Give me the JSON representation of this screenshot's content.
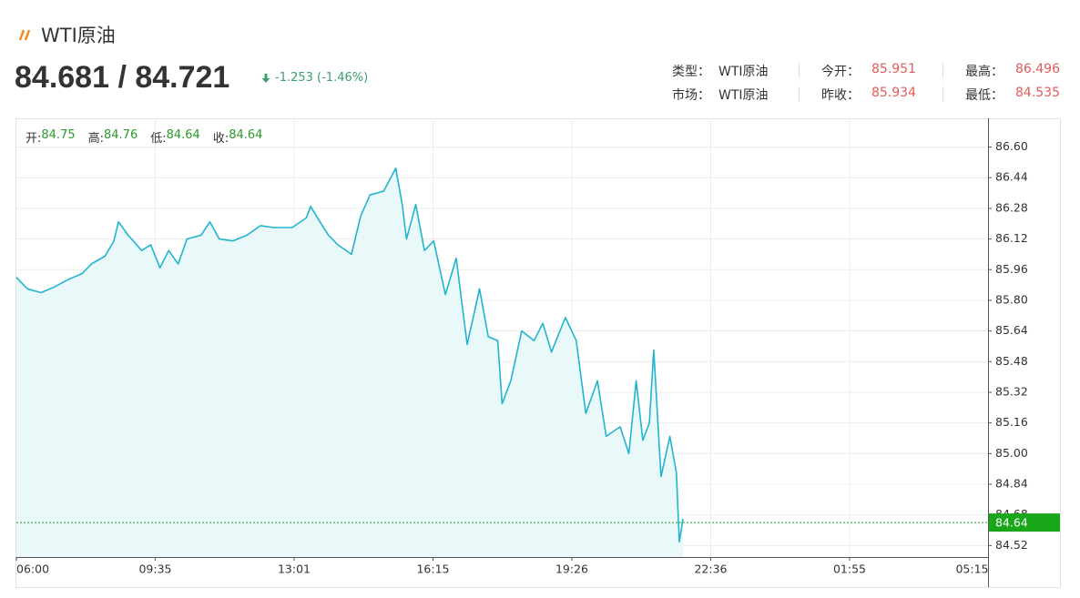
{
  "header": {
    "title": "WTI原油",
    "price": "84.681 / 84.721",
    "change": "-1.253 (-1.46%)",
    "info": [
      [
        {
          "label": "类型：",
          "value": "WTI原油"
        },
        {
          "label": "今开：",
          "value": "85.951"
        },
        {
          "label": "最高：",
          "value": "86.496"
        }
      ],
      [
        {
          "label": "市场：",
          "value": "WTI原油"
        },
        {
          "label": "昨收：",
          "value": "85.934"
        },
        {
          "label": "最低：",
          "value": "84.535"
        }
      ]
    ]
  },
  "chart_data": {
    "type": "line",
    "ohlc": [
      {
        "label": "开:",
        "value": 84.75
      },
      {
        "label": "高:",
        "value": 84.76
      },
      {
        "label": "低:",
        "value": 84.64
      },
      {
        "label": "收:",
        "value": 84.64
      }
    ],
    "x": [
      "06:00",
      "06:17",
      "06:38",
      "06:59",
      "07:21",
      "07:42",
      "07:56",
      "08:17",
      "08:31",
      "08:38",
      "08:53",
      "09:14",
      "09:28",
      "09:42",
      "09:55",
      "10:09",
      "10:22",
      "10:43",
      "10:56",
      "11:10",
      "11:30",
      "11:51",
      "12:11",
      "12:31",
      "12:58",
      "13:18",
      "13:24",
      "13:37",
      "13:49",
      "14:02",
      "14:21",
      "14:34",
      "14:47",
      "15:06",
      "15:23",
      "15:32",
      "15:38",
      "15:51",
      "16:03",
      "16:16",
      "16:32",
      "16:47",
      "17:02",
      "17:19",
      "17:31",
      "17:44",
      "17:50",
      "18:02",
      "18:17",
      "18:34",
      "18:46",
      "18:58",
      "19:17",
      "19:32",
      "19:45",
      "20:01",
      "20:13",
      "20:32",
      "20:44",
      "20:54",
      "21:03",
      "21:12",
      "21:18",
      "21:28",
      "21:40",
      "21:49",
      "21:53",
      "21:58"
    ],
    "series": [
      {
        "name": null,
        "color": "#22b4cf",
        "fill": "#e9f8f9",
        "values": [
          85.92,
          85.86,
          85.84,
          85.87,
          85.91,
          85.94,
          85.99,
          86.03,
          86.11,
          86.21,
          86.14,
          86.06,
          86.09,
          85.97,
          86.06,
          85.99,
          86.12,
          86.14,
          86.21,
          86.12,
          86.11,
          86.14,
          86.19,
          86.18,
          86.18,
          86.23,
          86.29,
          86.21,
          86.14,
          86.09,
          86.04,
          86.24,
          86.35,
          86.37,
          86.49,
          86.3,
          86.12,
          86.3,
          86.06,
          86.11,
          85.83,
          86.02,
          85.57,
          85.86,
          85.61,
          85.59,
          85.26,
          85.38,
          85.64,
          85.59,
          85.68,
          85.53,
          85.71,
          85.59,
          85.21,
          85.38,
          85.09,
          85.14,
          85.0,
          85.38,
          85.07,
          85.16,
          85.54,
          84.88,
          85.09,
          84.9,
          84.54,
          84.66
        ]
      }
    ],
    "xticks": [
      "06:00",
      "09:35",
      "13:01",
      "16:15",
      "19:26",
      "22:36",
      "01:55",
      "05:15"
    ],
    "ylim": [
      84.46,
      86.75
    ],
    "yticks": [
      {
        "value": 84.52,
        "label": "84.52"
      },
      {
        "value": 84.68,
        "label": "84.68"
      },
      84.84,
      {
        "value": 85.0,
        "label": "85.00"
      },
      85.16,
      85.32,
      85.48,
      85.64,
      {
        "value": 85.8,
        "label": "85.80"
      },
      85.96,
      86.12,
      86.28,
      86.44,
      {
        "value": 86.6,
        "label": "86.60"
      }
    ],
    "last_price": 84.64,
    "last_price_color": "#19a619",
    "grid": true
  }
}
